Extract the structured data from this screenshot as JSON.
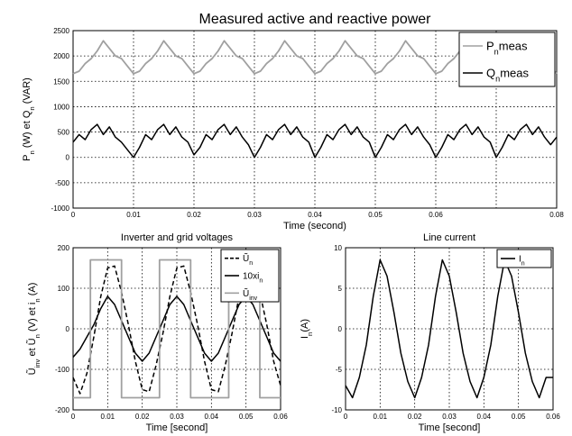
{
  "chart_data": [
    {
      "type": "line",
      "title": "Measured active and reactive power",
      "xlabel": "Time (second)",
      "ylabel": [
        "P",
        "n",
        " (W) et Q",
        "n",
        " (VAR)"
      ],
      "xlim": [
        0,
        0.08
      ],
      "ylim": [
        -1000,
        2500
      ],
      "xticks": [
        "0",
        "0.01",
        "0.02",
        "0.03",
        "0.04",
        "0.05",
        "0.06"
      ],
      "yticks": [
        "2500",
        "2000",
        "1500",
        "1000",
        "500",
        "0",
        "-500",
        "-1000"
      ],
      "grid": true,
      "legend_position": "top-right",
      "series": [
        {
          "name": [
            "P",
            "n",
            "meas"
          ],
          "color": "#a0a0a0",
          "x": [
            0,
            0.001,
            0.002,
            0.003,
            0.004,
            0.005,
            0.006,
            0.007,
            0.008,
            0.009,
            0.01,
            0.011,
            0.012,
            0.013,
            0.014,
            0.015,
            0.016,
            0.017,
            0.018,
            0.019,
            0.02,
            0.021,
            0.022,
            0.023,
            0.024,
            0.025,
            0.026,
            0.027,
            0.028,
            0.029,
            0.03,
            0.031,
            0.032,
            0.033,
            0.034,
            0.035,
            0.036,
            0.037,
            0.038,
            0.039,
            0.04,
            0.041,
            0.042,
            0.043,
            0.044,
            0.045,
            0.046,
            0.047,
            0.048,
            0.049,
            0.05,
            0.051,
            0.052,
            0.053,
            0.054,
            0.055,
            0.056,
            0.057,
            0.058,
            0.059,
            0.06,
            0.061,
            0.062,
            0.063,
            0.064,
            0.065,
            0.066,
            0.067,
            0.068,
            0.069,
            0.07,
            0.071,
            0.072,
            0.073,
            0.074,
            0.075,
            0.076,
            0.077,
            0.078,
            0.079,
            0.08
          ],
          "values": [
            1650,
            1700,
            1850,
            1950,
            2100,
            2300,
            2150,
            2000,
            1950,
            1800,
            1650,
            1700,
            1850,
            1950,
            2100,
            2300,
            2150,
            2000,
            1950,
            1800,
            1650,
            1700,
            1850,
            1950,
            2100,
            2300,
            2150,
            2000,
            1950,
            1800,
            1650,
            1700,
            1850,
            1950,
            2100,
            2300,
            2150,
            2000,
            1950,
            1800,
            1650,
            1700,
            1850,
            1950,
            2100,
            2300,
            2150,
            2000,
            1950,
            1800,
            1650,
            1700,
            1850,
            1950,
            2100,
            2300,
            2150,
            2000,
            1950,
            1800,
            1650,
            1700,
            1850,
            1950,
            2100,
            2300,
            2150,
            2000,
            1950,
            1800,
            1650,
            1700,
            1850,
            1950,
            2100,
            2300,
            2150,
            2000,
            1950,
            1800,
            1650
          ]
        },
        {
          "name": [
            "Q",
            "n",
            "meas"
          ],
          "color": "#000000",
          "x": [
            0,
            0.001,
            0.002,
            0.003,
            0.004,
            0.005,
            0.006,
            0.007,
            0.008,
            0.009,
            0.01,
            0.011,
            0.012,
            0.013,
            0.014,
            0.015,
            0.016,
            0.017,
            0.018,
            0.019,
            0.02,
            0.021,
            0.022,
            0.023,
            0.024,
            0.025,
            0.026,
            0.027,
            0.028,
            0.029,
            0.03,
            0.031,
            0.032,
            0.033,
            0.034,
            0.035,
            0.036,
            0.037,
            0.038,
            0.039,
            0.04,
            0.041,
            0.042,
            0.043,
            0.044,
            0.045,
            0.046,
            0.047,
            0.048,
            0.049,
            0.05,
            0.051,
            0.052,
            0.053,
            0.054,
            0.055,
            0.056,
            0.057,
            0.058,
            0.059,
            0.06,
            0.061,
            0.062,
            0.063,
            0.064,
            0.065,
            0.066,
            0.067,
            0.068,
            0.069,
            0.07,
            0.071,
            0.072,
            0.073,
            0.074,
            0.075,
            0.076,
            0.077,
            0.078,
            0.079,
            0.08
          ],
          "values": [
            300,
            450,
            350,
            550,
            650,
            450,
            600,
            400,
            300,
            150,
            0,
            200,
            450,
            350,
            550,
            650,
            450,
            600,
            400,
            300,
            50,
            200,
            450,
            350,
            550,
            650,
            450,
            600,
            400,
            250,
            0,
            200,
            450,
            350,
            550,
            650,
            450,
            600,
            400,
            300,
            0,
            200,
            450,
            350,
            550,
            650,
            450,
            600,
            400,
            300,
            0,
            200,
            450,
            350,
            550,
            650,
            450,
            600,
            400,
            250,
            0,
            200,
            450,
            350,
            550,
            650,
            450,
            600,
            400,
            300,
            0,
            200,
            450,
            350,
            550,
            650,
            450,
            600,
            400,
            250,
            400
          ]
        }
      ]
    },
    {
      "type": "line",
      "title": "Inverter and grid voltages",
      "xlabel": "Time [second]",
      "ylabel": [
        "Ũ",
        "inv",
        " et Ũ",
        "n",
        " (V) et i",
        "n",
        " (A)"
      ],
      "xlim": [
        0,
        0.06
      ],
      "ylim": [
        -200,
        200
      ],
      "xticks": [
        "0",
        "0.01",
        "0.02",
        "0.03",
        "0.04",
        "0.05",
        "0.06"
      ],
      "yticks": [
        "200",
        "100",
        "0",
        "-100",
        "-200"
      ],
      "grid": true,
      "legend_position": "top-right",
      "series": [
        {
          "name": [
            "Ũ",
            "n"
          ],
          "color": "#000000",
          "dashed": true,
          "x": [
            0,
            0.002,
            0.004,
            0.006,
            0.008,
            0.01,
            0.012,
            0.014,
            0.016,
            0.018,
            0.02,
            0.022,
            0.024,
            0.026,
            0.028,
            0.03,
            0.032,
            0.034,
            0.036,
            0.038,
            0.04,
            0.042,
            0.044,
            0.046,
            0.048,
            0.05,
            0.052,
            0.054,
            0.056,
            0.058,
            0.06
          ],
          "values": [
            -120,
            -160,
            -110,
            -20,
            80,
            150,
            155,
            90,
            10,
            -80,
            -150,
            -155,
            -90,
            -10,
            80,
            150,
            155,
            90,
            10,
            -80,
            -150,
            -155,
            -90,
            -10,
            80,
            150,
            155,
            90,
            10,
            -80,
            -140
          ]
        },
        {
          "name": [
            "10xi",
            "n"
          ],
          "color": "#000000",
          "x": [
            0,
            0.002,
            0.004,
            0.006,
            0.008,
            0.01,
            0.012,
            0.014,
            0.016,
            0.018,
            0.02,
            0.022,
            0.024,
            0.026,
            0.028,
            0.03,
            0.032,
            0.034,
            0.036,
            0.038,
            0.04,
            0.042,
            0.044,
            0.046,
            0.048,
            0.05,
            0.052,
            0.054,
            0.056,
            0.058,
            0.06
          ],
          "values": [
            -70,
            -50,
            -20,
            10,
            50,
            80,
            60,
            20,
            -20,
            -60,
            -80,
            -60,
            -20,
            20,
            60,
            80,
            60,
            20,
            -20,
            -60,
            -80,
            -60,
            -20,
            20,
            60,
            80,
            60,
            20,
            -20,
            -60,
            -80
          ]
        },
        {
          "name": [
            "Ũ",
            "inv"
          ],
          "color": "#a0a0a0",
          "x": [
            0,
            0.005,
            0.005,
            0.014,
            0.014,
            0.025,
            0.025,
            0.034,
            0.034,
            0.045,
            0.045,
            0.054,
            0.054,
            0.06
          ],
          "values": [
            -170,
            -170,
            170,
            170,
            -170,
            -170,
            170,
            170,
            -170,
            -170,
            170,
            170,
            -170,
            -170
          ]
        }
      ]
    },
    {
      "type": "line",
      "title": "Line current",
      "xlabel": "Time [second]",
      "ylabel": [
        "I",
        "n",
        "(A)"
      ],
      "xlim": [
        0,
        0.06
      ],
      "ylim": [
        -10,
        10
      ],
      "xticks": [
        "0",
        "0.01",
        "0.02",
        "0.03",
        "0.04",
        "0.05",
        "0.06"
      ],
      "yticks": [
        "10",
        "5",
        "0",
        "-5",
        "-10"
      ],
      "grid": true,
      "legend_position": "top-right",
      "series": [
        {
          "name": [
            "I",
            "n"
          ],
          "color": "#000000",
          "x": [
            0,
            0.002,
            0.004,
            0.006,
            0.008,
            0.01,
            0.012,
            0.014,
            0.016,
            0.018,
            0.02,
            0.022,
            0.024,
            0.026,
            0.028,
            0.03,
            0.032,
            0.034,
            0.036,
            0.038,
            0.04,
            0.042,
            0.044,
            0.046,
            0.048,
            0.05,
            0.052,
            0.054,
            0.056,
            0.058,
            0.06
          ],
          "values": [
            -7,
            -8.5,
            -6,
            -2,
            4,
            8.5,
            6.5,
            2,
            -3,
            -6.5,
            -8.5,
            -6,
            -2,
            4,
            8.5,
            6.5,
            2,
            -3,
            -6.5,
            -8.5,
            -6,
            -2,
            4,
            8.5,
            6.5,
            2,
            -3,
            -6.5,
            -8.5,
            -6,
            -6
          ]
        }
      ]
    }
  ]
}
